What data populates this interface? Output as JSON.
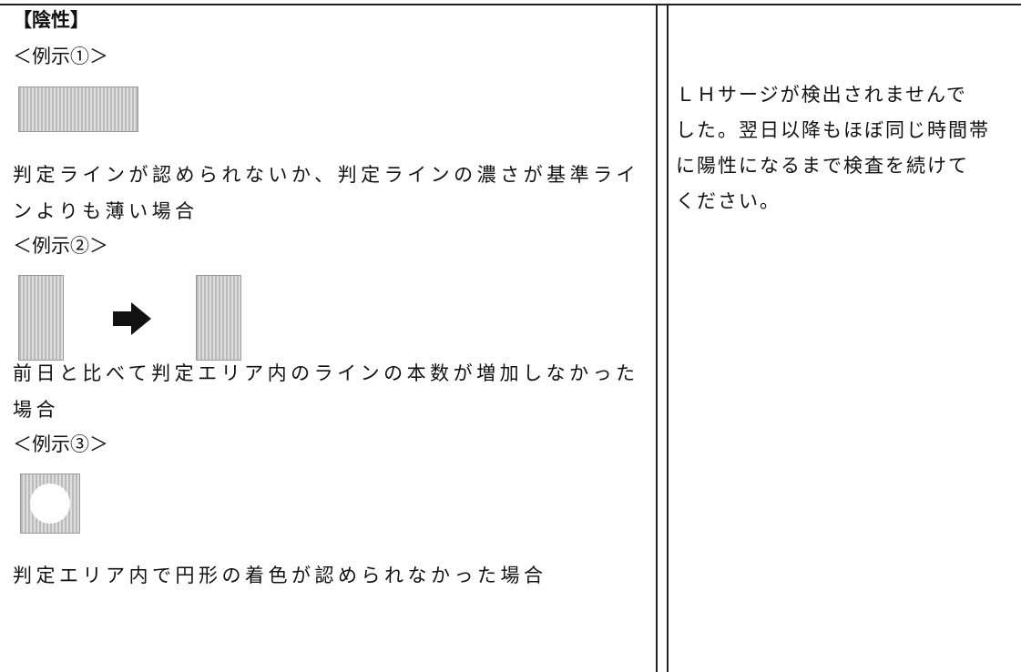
{
  "left": {
    "heading": "【陰性】",
    "example1": {
      "label": "＜例示①＞",
      "text": "判定ラインが認められないか、判定ラインの濃さが基準ラインよりも薄い場合"
    },
    "example2": {
      "label": "＜例示②＞",
      "text": "前日と比べて判定エリア内のラインの本数が増加しなかった場合"
    },
    "example3": {
      "label": "＜例示③＞",
      "text": "判定エリア内で円形の着色が認められなかった場合"
    }
  },
  "right": {
    "lines": [
      "ＬＨサージが検出されませんで",
      "した。翌日以降もほぼ同じ時間帯",
      "に陽性になるまで検査を続けて",
      "ください。"
    ]
  }
}
